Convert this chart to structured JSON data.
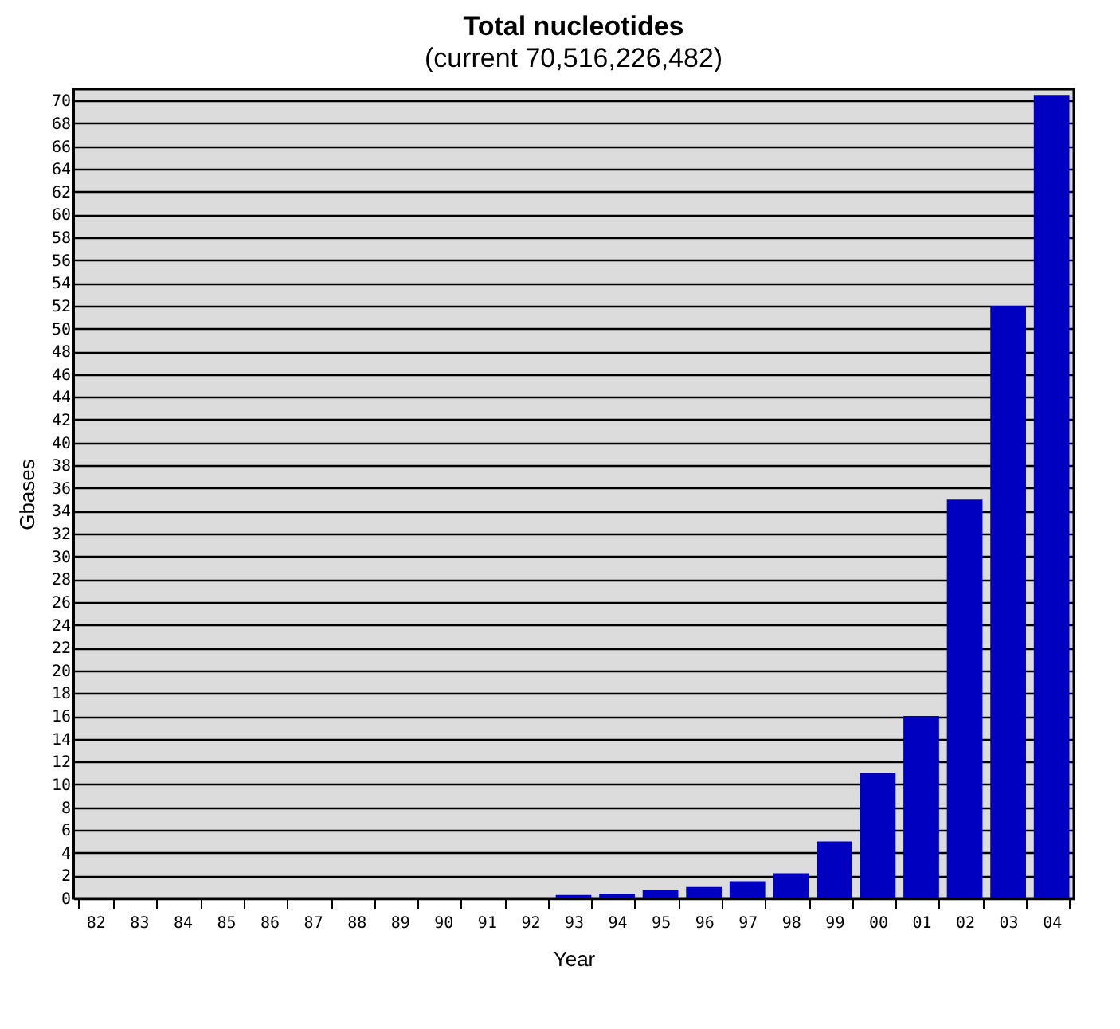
{
  "chart_data": {
    "type": "bar",
    "title": "Total nucleotides",
    "subtitle": "(current 70,516,226,482)",
    "xlabel": "Year",
    "ylabel": "Gbases",
    "categories": [
      "82",
      "83",
      "84",
      "85",
      "86",
      "87",
      "88",
      "89",
      "90",
      "91",
      "92",
      "93",
      "94",
      "95",
      "96",
      "97",
      "98",
      "99",
      "00",
      "01",
      "02",
      "03",
      "04"
    ],
    "values": [
      0,
      0,
      0,
      0,
      0,
      0,
      0,
      0,
      0,
      0,
      0,
      0.3,
      0.4,
      0.7,
      1.0,
      1.5,
      2.2,
      5,
      11,
      16,
      35,
      52,
      70.5
    ],
    "color": "#0000c0",
    "ylim": [
      0,
      71
    ],
    "yticks": [
      0,
      2,
      4,
      6,
      8,
      10,
      12,
      14,
      16,
      18,
      20,
      22,
      24,
      26,
      28,
      30,
      32,
      34,
      36,
      38,
      40,
      42,
      44,
      46,
      48,
      50,
      52,
      54,
      56,
      58,
      60,
      62,
      64,
      66,
      68,
      70
    ],
    "grid": "y"
  }
}
